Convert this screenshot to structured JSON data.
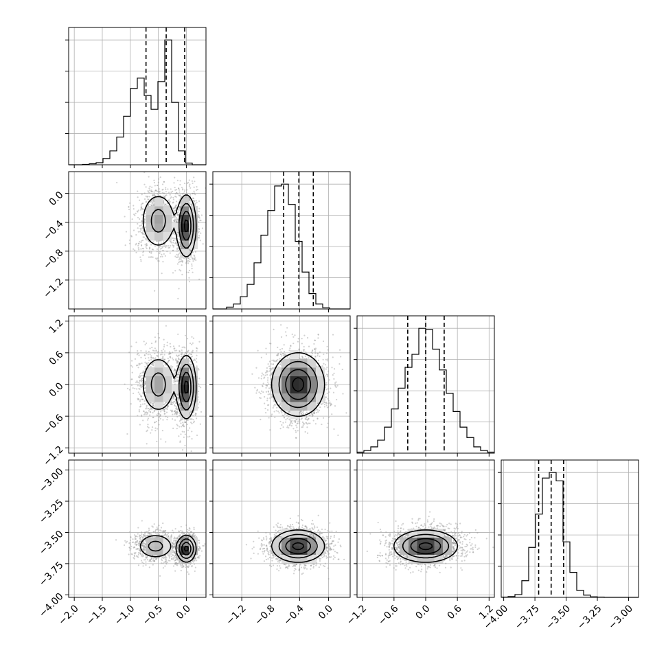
{
  "chart_data": {
    "type": "corner",
    "grid": true,
    "n_params": 4,
    "parameters": [
      {
        "index": 0,
        "range": [
          -2.1,
          0.35
        ],
        "ticks": [
          -2.0,
          -1.5,
          -1.0,
          -0.5,
          0.0
        ],
        "tick_labels": [
          "−2.0",
          "−1.5",
          "−1.0",
          "−0.5",
          "0.0"
        ],
        "quantiles": [
          -0.72,
          -0.36,
          -0.03
        ]
      },
      {
        "index": 1,
        "range": [
          -1.6,
          0.3
        ],
        "ticks": [
          -1.2,
          -0.8,
          -0.4,
          0.0
        ],
        "tick_labels": [
          "−1.2",
          "−0.8",
          "−0.4",
          "0.0"
        ],
        "quantiles": [
          -0.62,
          -0.41,
          -0.21
        ]
      },
      {
        "index": 2,
        "range": [
          -1.3,
          1.3
        ],
        "ticks": [
          -1.2,
          -0.6,
          0.0,
          0.6,
          1.2
        ],
        "tick_labels": [
          "−1.2",
          "−0.6",
          "0.0",
          "0.6",
          "1.2"
        ],
        "quantiles": [
          -0.34,
          0.0,
          0.35
        ]
      },
      {
        "index": 3,
        "range": [
          -4.02,
          -2.92
        ],
        "ticks": [
          -4.0,
          -3.75,
          -3.5,
          -3.25,
          -3.0
        ],
        "tick_labels": [
          "−4.00",
          "−3.75",
          "−3.50",
          "−3.25",
          "−3.00"
        ],
        "quantiles": [
          -3.72,
          -3.62,
          -3.52
        ]
      }
    ],
    "histograms": [
      {
        "param": 0,
        "bin_start": -2.1,
        "bin_width": 0.1225,
        "counts": [
          0,
          0,
          1,
          3,
          6,
          18,
          40,
          80,
          140,
          220,
          250,
          200,
          160,
          240,
          360,
          180,
          40,
          5,
          0,
          0
        ]
      },
      {
        "param": 1,
        "bin_start": -1.6,
        "bin_width": 0.095,
        "counts": [
          0,
          0,
          3,
          8,
          20,
          40,
          75,
          120,
          160,
          200,
          203,
          170,
          110,
          60,
          25,
          8,
          2,
          0,
          0,
          0
        ]
      },
      {
        "param": 2,
        "bin_start": -1.3,
        "bin_width": 0.13,
        "counts": [
          2,
          5,
          12,
          25,
          50,
          85,
          125,
          165,
          190,
          240,
          238,
          200,
          160,
          115,
          80,
          50,
          30,
          12,
          5,
          2
        ]
      },
      {
        "param": 3,
        "bin_start": -4.02,
        "bin_width": 0.055,
        "counts": [
          1,
          3,
          10,
          60,
          180,
          300,
          430,
          450,
          420,
          200,
          90,
          25,
          8,
          2,
          1,
          0,
          0,
          0,
          0,
          0
        ]
      }
    ],
    "pairs": [
      {
        "x_param": 0,
        "y_param": 1,
        "modes": [
          {
            "mean": [
              -0.5,
              -0.38
            ],
            "sd": [
              0.16,
              0.2
            ],
            "w": 0.45
          },
          {
            "mean": [
              0.0,
              -0.45
            ],
            "sd": [
              0.08,
              0.2
            ],
            "w": 0.55
          }
        ]
      },
      {
        "x_param": 0,
        "y_param": 2,
        "modes": [
          {
            "mean": [
              -0.5,
              0.0
            ],
            "sd": [
              0.16,
              0.28
            ],
            "w": 0.45
          },
          {
            "mean": [
              0.0,
              -0.05
            ],
            "sd": [
              0.08,
              0.28
            ],
            "w": 0.55
          }
        ]
      },
      {
        "x_param": 1,
        "y_param": 2,
        "modes": [
          {
            "mean": [
              -0.42,
              0.0
            ],
            "sd": [
              0.17,
              0.28
            ],
            "w": 1.0
          }
        ]
      },
      {
        "x_param": 0,
        "y_param": 3,
        "modes": [
          {
            "mean": [
              -0.55,
              -3.61
            ],
            "sd": [
              0.16,
              0.05
            ],
            "w": 0.45
          },
          {
            "mean": [
              0.0,
              -3.63
            ],
            "sd": [
              0.08,
              0.05
            ],
            "w": 0.55
          }
        ]
      },
      {
        "x_param": 1,
        "y_param": 3,
        "modes": [
          {
            "mean": [
              -0.42,
              -3.61
            ],
            "sd": [
              0.17,
              0.06
            ],
            "w": 1.0
          }
        ]
      },
      {
        "x_param": 2,
        "y_param": 3,
        "modes": [
          {
            "mean": [
              0.0,
              -3.61
            ],
            "sd": [
              0.28,
              0.06
            ],
            "w": 1.0
          }
        ]
      }
    ]
  }
}
